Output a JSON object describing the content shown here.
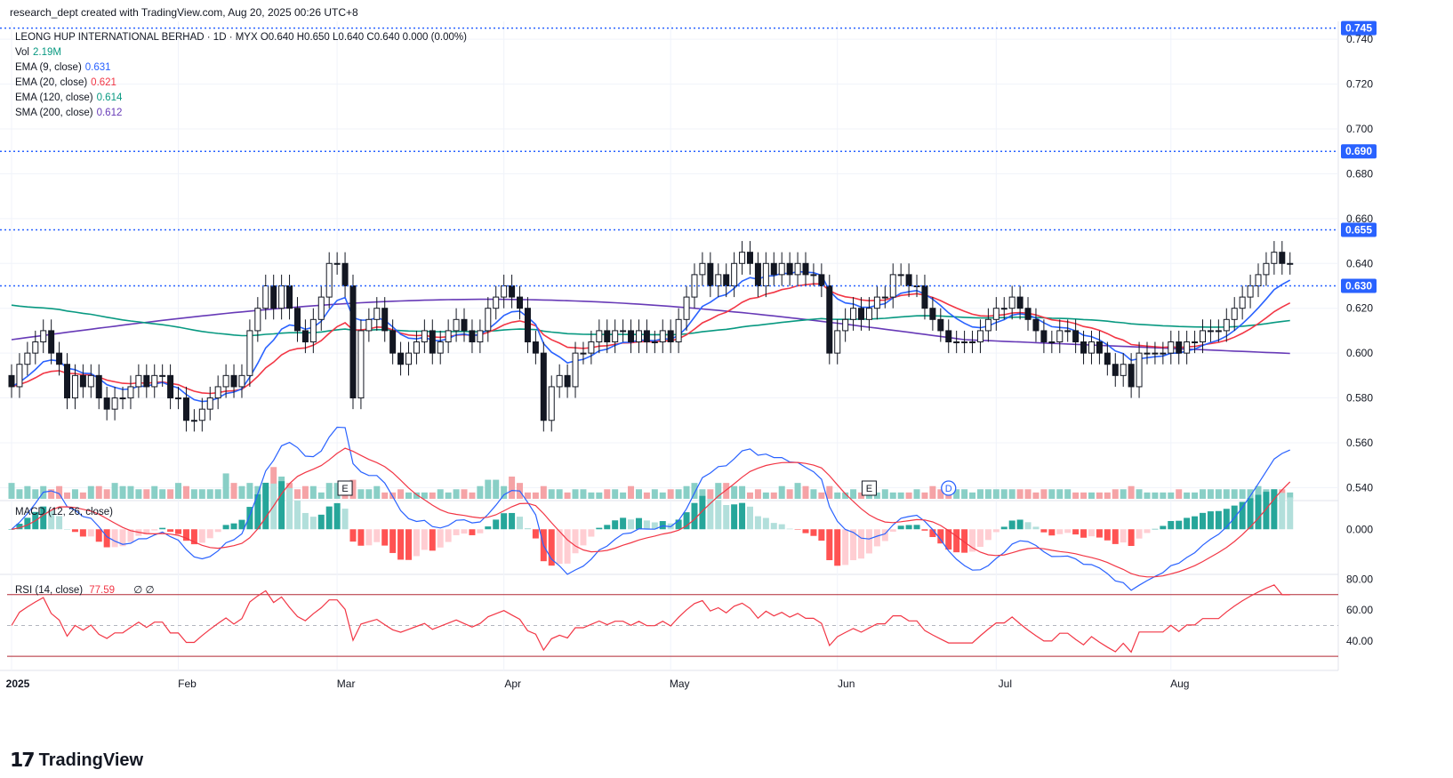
{
  "header": {
    "text": "research_dept created with TradingView.com, Aug 20, 2025 00:26 UTC+8"
  },
  "legend": {
    "title": "LEONG HUP INTERNATIONAL BERHAD · 1D · MYX  O0.640  H0.650  L0.640  C0.640  0.000 (0.00%)",
    "vol_label": "Vol",
    "vol_value": "2.19M",
    "ema9_label": "EMA (9, close)",
    "ema9_value": "0.631",
    "ema20_label": "EMA (20, close)",
    "ema20_value": "0.621",
    "ema120_label": "EMA (120, close)",
    "ema120_value": "0.614",
    "sma200_label": "SMA (200, close)",
    "sma200_value": "0.612"
  },
  "macd_label": "MACD (12, 26, close)",
  "rsi_label": "RSI (14, close)",
  "rsi_value": "77.59",
  "rsi_extra": "∅  ∅",
  "logo_text": "TradingView",
  "colors": {
    "up": "#ffffff",
    "down": "#131722",
    "ema9": "#2962ff",
    "ema20": "#f23645",
    "ema120": "#089981",
    "sma200": "#673ab7",
    "level": "#2962ff",
    "vol_up": "#89cfc6",
    "vol_down": "#f5a3a6",
    "rsi": "#f23645"
  },
  "chart_data": {
    "type": "candlestick",
    "symbol": "LEONG HUP INTERNATIONAL BERHAD",
    "price_axis": {
      "ylim": [
        0.535,
        0.748
      ],
      "ticks": [
        "0.740",
        "0.720",
        "0.700",
        "0.680",
        "0.660",
        "0.640",
        "0.620",
        "0.600",
        "0.580",
        "0.560",
        "0.540"
      ]
    },
    "months": [
      "2025",
      "Feb",
      "Mar",
      "Apr",
      "May",
      "Jun",
      "Jul",
      "Aug"
    ],
    "month_start_index": [
      0,
      21,
      41,
      62,
      83,
      104,
      124,
      146
    ],
    "levels": [
      {
        "value": 0.745,
        "label": "0.745"
      },
      {
        "value": 0.69,
        "label": "0.690"
      },
      {
        "value": 0.655,
        "label": "0.655"
      },
      {
        "value": 0.63,
        "label": "0.630"
      }
    ],
    "closes": [
      0.585,
      0.595,
      0.6,
      0.605,
      0.61,
      0.6,
      0.595,
      0.58,
      0.59,
      0.585,
      0.59,
      0.58,
      0.575,
      0.58,
      0.58,
      0.585,
      0.59,
      0.585,
      0.59,
      0.59,
      0.58,
      0.58,
      0.57,
      0.57,
      0.575,
      0.58,
      0.585,
      0.59,
      0.585,
      0.59,
      0.61,
      0.62,
      0.63,
      0.62,
      0.63,
      0.62,
      0.61,
      0.605,
      0.615,
      0.625,
      0.64,
      0.64,
      0.63,
      0.58,
      0.61,
      0.615,
      0.62,
      0.61,
      0.6,
      0.595,
      0.6,
      0.605,
      0.61,
      0.6,
      0.605,
      0.61,
      0.615,
      0.61,
      0.605,
      0.61,
      0.62,
      0.625,
      0.63,
      0.625,
      0.62,
      0.605,
      0.6,
      0.57,
      0.585,
      0.59,
      0.585,
      0.6,
      0.6,
      0.605,
      0.61,
      0.605,
      0.61,
      0.61,
      0.605,
      0.61,
      0.605,
      0.605,
      0.61,
      0.605,
      0.615,
      0.625,
      0.635,
      0.64,
      0.63,
      0.635,
      0.63,
      0.64,
      0.645,
      0.64,
      0.63,
      0.64,
      0.635,
      0.64,
      0.635,
      0.64,
      0.635,
      0.635,
      0.63,
      0.6,
      0.61,
      0.615,
      0.62,
      0.615,
      0.62,
      0.625,
      0.625,
      0.635,
      0.635,
      0.63,
      0.63,
      0.62,
      0.615,
      0.61,
      0.605,
      0.605,
      0.605,
      0.605,
      0.61,
      0.615,
      0.62,
      0.62,
      0.625,
      0.62,
      0.615,
      0.61,
      0.605,
      0.605,
      0.61,
      0.61,
      0.605,
      0.6,
      0.605,
      0.6,
      0.595,
      0.59,
      0.595,
      0.585,
      0.6,
      0.6,
      0.6,
      0.6,
      0.605,
      0.6,
      0.605,
      0.605,
      0.61,
      0.61,
      0.61,
      0.615,
      0.62,
      0.625,
      0.63,
      0.635,
      0.64,
      0.645,
      0.64,
      0.64
    ],
    "volume_scale_max": 14,
    "volume": [
      5,
      3,
      4,
      3,
      4,
      3,
      4,
      2,
      3,
      2,
      4,
      4,
      3,
      5,
      4,
      4,
      3,
      3,
      4,
      3,
      3,
      5,
      4,
      3,
      3,
      3,
      3,
      8,
      5,
      4,
      5,
      4,
      4,
      10,
      7,
      5,
      3,
      4,
      4,
      2,
      5,
      5,
      4,
      6,
      3,
      3,
      4,
      2,
      2,
      3,
      2,
      2,
      2,
      2,
      3,
      2,
      3,
      3,
      2,
      4,
      6,
      6,
      4,
      7,
      5,
      2,
      2,
      4,
      3,
      3,
      2,
      3,
      3,
      2,
      2,
      3,
      3,
      2,
      4,
      3,
      2,
      3,
      2,
      3,
      3,
      4,
      5,
      3,
      3,
      5,
      5,
      4,
      4,
      2,
      3,
      2,
      2,
      4,
      3,
      5,
      4,
      3,
      2,
      4,
      2,
      2,
      3,
      2,
      2,
      2,
      3,
      2,
      2,
      2,
      3,
      2,
      4,
      3,
      2,
      3,
      3,
      2,
      3,
      3,
      3,
      3,
      3,
      3,
      3,
      2,
      3,
      3,
      3,
      3,
      2,
      2,
      2,
      2,
      2,
      3,
      3,
      4,
      3,
      2,
      2,
      2,
      2,
      3,
      2,
      2,
      3,
      3,
      3,
      3,
      3,
      3,
      3,
      4,
      3,
      3,
      3,
      2
    ],
    "macd": {
      "ylim": [
        -0.005,
        0.003
      ],
      "tick": "0.000"
    },
    "rsi": {
      "ylim": [
        22,
        82
      ],
      "ticks": [
        "80.00",
        "60.00",
        "40.00"
      ],
      "upper": 70,
      "mid": 50,
      "lower": 30,
      "last": 77.59
    },
    "events": [
      {
        "label": "E",
        "index": 42
      },
      {
        "label": "E",
        "index": 108
      },
      {
        "label": "D",
        "index": 118
      }
    ]
  }
}
